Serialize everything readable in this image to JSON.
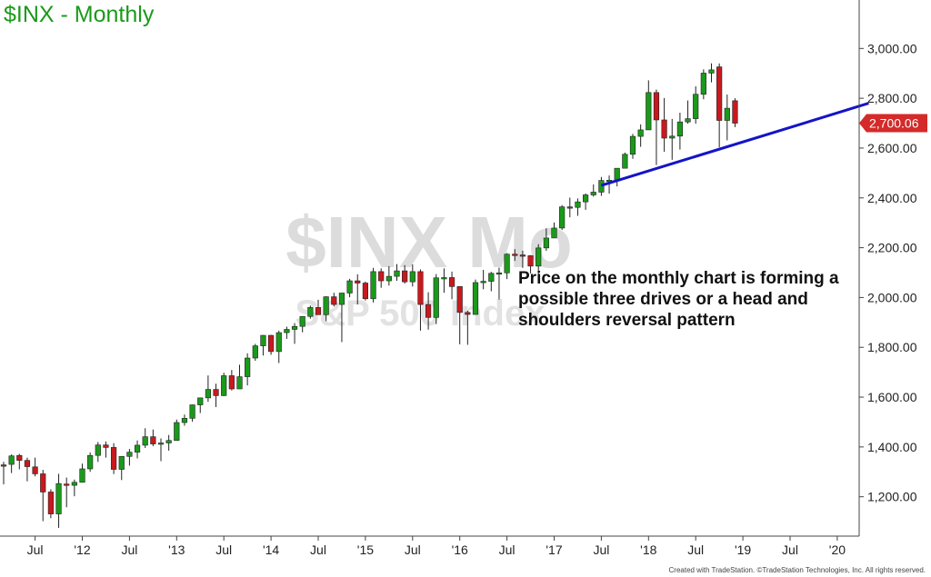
{
  "header": {
    "title": "$INX - Monthly"
  },
  "watermark": {
    "symbol": "$INX Mo",
    "name": "S&P 500 Index"
  },
  "annotation": "Price on the monthly chart is forming a possible three drives or a head and shoulders reversal pattern",
  "last_price_label": "2,700.06",
  "footer": "Created with TradeStation. ©TradeStation Technologies, Inc. All rights reserved.",
  "colors": {
    "up": "#1a9a1a",
    "down": "#c8191e",
    "trendline": "#1414c8",
    "title": "#1a9a1a",
    "price_tag": "#d42a2a"
  },
  "chart_data": {
    "type": "candlestick",
    "title": "$INX - Monthly",
    "ylim": [
      1000,
      3200
    ],
    "xlim": [
      "2011-03",
      "2020-05"
    ],
    "y_ticks": [
      {
        "value": 1200,
        "label": "1,200.00"
      },
      {
        "value": 1400,
        "label": "1,400.00"
      },
      {
        "value": 1600,
        "label": "1,600.00"
      },
      {
        "value": 1800,
        "label": "1,800.00"
      },
      {
        "value": 2000,
        "label": "2,000.00"
      },
      {
        "value": 2200,
        "label": "2,200.00"
      },
      {
        "value": 2400,
        "label": "2,400.00"
      },
      {
        "value": 2600,
        "label": "2,600.00"
      },
      {
        "value": 2800,
        "label": "2,800.00"
      },
      {
        "value": 3000,
        "label": "3,000.00"
      }
    ],
    "x_ticks": [
      {
        "date": "2011-07",
        "label": "Jul"
      },
      {
        "date": "2012-01",
        "label": "'12"
      },
      {
        "date": "2012-07",
        "label": "Jul"
      },
      {
        "date": "2013-01",
        "label": "'13"
      },
      {
        "date": "2013-07",
        "label": "Jul"
      },
      {
        "date": "2014-01",
        "label": "'14"
      },
      {
        "date": "2014-07",
        "label": "Jul"
      },
      {
        "date": "2015-01",
        "label": "'15"
      },
      {
        "date": "2015-07",
        "label": "Jul"
      },
      {
        "date": "2016-01",
        "label": "'16"
      },
      {
        "date": "2016-07",
        "label": "Jul"
      },
      {
        "date": "2017-01",
        "label": "'17"
      },
      {
        "date": "2017-07",
        "label": "Jul"
      },
      {
        "date": "2018-01",
        "label": "'18"
      },
      {
        "date": "2018-07",
        "label": "Jul"
      },
      {
        "date": "2019-01",
        "label": "'19"
      },
      {
        "date": "2019-07",
        "label": "Jul"
      },
      {
        "date": "2020-01",
        "label": "'20"
      }
    ],
    "candles": [
      {
        "date": "2011-03",
        "o": 1328,
        "h": 1340,
        "l": 1250,
        "c": 1325
      },
      {
        "date": "2011-04",
        "o": 1330,
        "h": 1370,
        "l": 1295,
        "c": 1364
      },
      {
        "date": "2011-05",
        "o": 1366,
        "h": 1372,
        "l": 1310,
        "c": 1346
      },
      {
        "date": "2011-06",
        "o": 1346,
        "h": 1357,
        "l": 1262,
        "c": 1321
      },
      {
        "date": "2011-07",
        "o": 1320,
        "h": 1357,
        "l": 1282,
        "c": 1292
      },
      {
        "date": "2011-08",
        "o": 1292,
        "h": 1308,
        "l": 1102,
        "c": 1219
      },
      {
        "date": "2011-09",
        "o": 1219,
        "h": 1230,
        "l": 1114,
        "c": 1131
      },
      {
        "date": "2011-10",
        "o": 1131,
        "h": 1292,
        "l": 1075,
        "c": 1253
      },
      {
        "date": "2011-11",
        "o": 1251,
        "h": 1277,
        "l": 1158,
        "c": 1247
      },
      {
        "date": "2011-12",
        "o": 1246,
        "h": 1269,
        "l": 1202,
        "c": 1258
      },
      {
        "date": "2012-01",
        "o": 1258,
        "h": 1333,
        "l": 1258,
        "c": 1312
      },
      {
        "date": "2012-02",
        "o": 1312,
        "h": 1378,
        "l": 1300,
        "c": 1366
      },
      {
        "date": "2012-03",
        "o": 1366,
        "h": 1420,
        "l": 1340,
        "c": 1408
      },
      {
        "date": "2012-04",
        "o": 1408,
        "h": 1422,
        "l": 1357,
        "c": 1398
      },
      {
        "date": "2012-05",
        "o": 1398,
        "h": 1415,
        "l": 1291,
        "c": 1310
      },
      {
        "date": "2012-06",
        "o": 1310,
        "h": 1363,
        "l": 1267,
        "c": 1362
      },
      {
        "date": "2012-07",
        "o": 1362,
        "h": 1392,
        "l": 1325,
        "c": 1379
      },
      {
        "date": "2012-08",
        "o": 1379,
        "h": 1426,
        "l": 1354,
        "c": 1407
      },
      {
        "date": "2012-09",
        "o": 1407,
        "h": 1475,
        "l": 1396,
        "c": 1441
      },
      {
        "date": "2012-10",
        "o": 1441,
        "h": 1470,
        "l": 1403,
        "c": 1412
      },
      {
        "date": "2012-11",
        "o": 1412,
        "h": 1434,
        "l": 1343,
        "c": 1416
      },
      {
        "date": "2012-12",
        "o": 1416,
        "h": 1448,
        "l": 1385,
        "c": 1426
      },
      {
        "date": "2013-01",
        "o": 1426,
        "h": 1510,
        "l": 1426,
        "c": 1498
      },
      {
        "date": "2013-02",
        "o": 1498,
        "h": 1530,
        "l": 1485,
        "c": 1515
      },
      {
        "date": "2013-03",
        "o": 1515,
        "h": 1570,
        "l": 1501,
        "c": 1569
      },
      {
        "date": "2013-04",
        "o": 1569,
        "h": 1597,
        "l": 1536,
        "c": 1597
      },
      {
        "date": "2013-05",
        "o": 1597,
        "h": 1687,
        "l": 1581,
        "c": 1631
      },
      {
        "date": "2013-06",
        "o": 1631,
        "h": 1654,
        "l": 1560,
        "c": 1606
      },
      {
        "date": "2013-07",
        "o": 1606,
        "h": 1698,
        "l": 1604,
        "c": 1686
      },
      {
        "date": "2013-08",
        "o": 1686,
        "h": 1709,
        "l": 1627,
        "c": 1633
      },
      {
        "date": "2013-09",
        "o": 1633,
        "h": 1730,
        "l": 1633,
        "c": 1682
      },
      {
        "date": "2013-10",
        "o": 1682,
        "h": 1776,
        "l": 1647,
        "c": 1757
      },
      {
        "date": "2013-11",
        "o": 1757,
        "h": 1814,
        "l": 1746,
        "c": 1806
      },
      {
        "date": "2013-12",
        "o": 1806,
        "h": 1849,
        "l": 1767,
        "c": 1848
      },
      {
        "date": "2014-01",
        "o": 1848,
        "h": 1850,
        "l": 1770,
        "c": 1783
      },
      {
        "date": "2014-02",
        "o": 1783,
        "h": 1867,
        "l": 1737,
        "c": 1859
      },
      {
        "date": "2014-03",
        "o": 1859,
        "h": 1883,
        "l": 1834,
        "c": 1872
      },
      {
        "date": "2014-04",
        "o": 1872,
        "h": 1897,
        "l": 1814,
        "c": 1884
      },
      {
        "date": "2014-05",
        "o": 1884,
        "h": 1924,
        "l": 1860,
        "c": 1924
      },
      {
        "date": "2014-06",
        "o": 1924,
        "h": 1968,
        "l": 1915,
        "c": 1960
      },
      {
        "date": "2014-07",
        "o": 1960,
        "h": 1991,
        "l": 1930,
        "c": 1931
      },
      {
        "date": "2014-08",
        "o": 1931,
        "h": 2005,
        "l": 1905,
        "c": 2003
      },
      {
        "date": "2014-09",
        "o": 2003,
        "h": 2019,
        "l": 1964,
        "c": 1972
      },
      {
        "date": "2014-10",
        "o": 1972,
        "h": 2019,
        "l": 1821,
        "c": 2018
      },
      {
        "date": "2014-11",
        "o": 2018,
        "h": 2075,
        "l": 2001,
        "c": 2067
      },
      {
        "date": "2014-12",
        "o": 2067,
        "h": 2093,
        "l": 1972,
        "c": 2058
      },
      {
        "date": "2015-01",
        "o": 2058,
        "h": 2064,
        "l": 1988,
        "c": 1995
      },
      {
        "date": "2015-02",
        "o": 1995,
        "h": 2119,
        "l": 1980,
        "c": 2104
      },
      {
        "date": "2015-03",
        "o": 2104,
        "h": 2117,
        "l": 2039,
        "c": 2067
      },
      {
        "date": "2015-04",
        "o": 2067,
        "h": 2126,
        "l": 2048,
        "c": 2085
      },
      {
        "date": "2015-05",
        "o": 2085,
        "h": 2134,
        "l": 2067,
        "c": 2107
      },
      {
        "date": "2015-06",
        "o": 2107,
        "h": 2130,
        "l": 2056,
        "c": 2063
      },
      {
        "date": "2015-07",
        "o": 2063,
        "h": 2133,
        "l": 2044,
        "c": 2104
      },
      {
        "date": "2015-08",
        "o": 2104,
        "h": 2113,
        "l": 1867,
        "c": 1972
      },
      {
        "date": "2015-09",
        "o": 1972,
        "h": 2021,
        "l": 1871,
        "c": 1920
      },
      {
        "date": "2015-10",
        "o": 1920,
        "h": 2094,
        "l": 1893,
        "c": 2079
      },
      {
        "date": "2015-11",
        "o": 2079,
        "h": 2117,
        "l": 2019,
        "c": 2080
      },
      {
        "date": "2015-12",
        "o": 2080,
        "h": 2104,
        "l": 1993,
        "c": 2044
      },
      {
        "date": "2016-01",
        "o": 2044,
        "h": 2038,
        "l": 1812,
        "c": 1940
      },
      {
        "date": "2016-02",
        "o": 1940,
        "h": 1947,
        "l": 1810,
        "c": 1932
      },
      {
        "date": "2016-03",
        "o": 1932,
        "h": 2072,
        "l": 1931,
        "c": 2060
      },
      {
        "date": "2016-04",
        "o": 2060,
        "h": 2111,
        "l": 2033,
        "c": 2065
      },
      {
        "date": "2016-05",
        "o": 2065,
        "h": 2103,
        "l": 2025,
        "c": 2097
      },
      {
        "date": "2016-06",
        "o": 2097,
        "h": 2120,
        "l": 1992,
        "c": 2099
      },
      {
        "date": "2016-07",
        "o": 2099,
        "h": 2178,
        "l": 2074,
        "c": 2174
      },
      {
        "date": "2016-08",
        "o": 2174,
        "h": 2194,
        "l": 2147,
        "c": 2171
      },
      {
        "date": "2016-09",
        "o": 2171,
        "h": 2188,
        "l": 2119,
        "c": 2168
      },
      {
        "date": "2016-10",
        "o": 2168,
        "h": 2170,
        "l": 2097,
        "c": 2126
      },
      {
        "date": "2016-11",
        "o": 2126,
        "h": 2214,
        "l": 2084,
        "c": 2199
      },
      {
        "date": "2016-12",
        "o": 2199,
        "h": 2278,
        "l": 2187,
        "c": 2239
      },
      {
        "date": "2017-01",
        "o": 2239,
        "h": 2301,
        "l": 2245,
        "c": 2279
      },
      {
        "date": "2017-02",
        "o": 2279,
        "h": 2371,
        "l": 2271,
        "c": 2364
      },
      {
        "date": "2017-03",
        "o": 2364,
        "h": 2401,
        "l": 2322,
        "c": 2362
      },
      {
        "date": "2017-04",
        "o": 2362,
        "h": 2398,
        "l": 2328,
        "c": 2384
      },
      {
        "date": "2017-05",
        "o": 2384,
        "h": 2418,
        "l": 2352,
        "c": 2412
      },
      {
        "date": "2017-06",
        "o": 2412,
        "h": 2454,
        "l": 2405,
        "c": 2423
      },
      {
        "date": "2017-07",
        "o": 2423,
        "h": 2484,
        "l": 2408,
        "c": 2470
      },
      {
        "date": "2017-08",
        "o": 2470,
        "h": 2490,
        "l": 2417,
        "c": 2471
      },
      {
        "date": "2017-09",
        "o": 2471,
        "h": 2519,
        "l": 2446,
        "c": 2519
      },
      {
        "date": "2017-10",
        "o": 2519,
        "h": 2582,
        "l": 2520,
        "c": 2575
      },
      {
        "date": "2017-11",
        "o": 2575,
        "h": 2657,
        "l": 2557,
        "c": 2647
      },
      {
        "date": "2017-12",
        "o": 2647,
        "h": 2695,
        "l": 2605,
        "c": 2673
      },
      {
        "date": "2018-01",
        "o": 2673,
        "h": 2872,
        "l": 2682,
        "c": 2823
      },
      {
        "date": "2018-02",
        "o": 2823,
        "h": 2835,
        "l": 2532,
        "c": 2713
      },
      {
        "date": "2018-03",
        "o": 2713,
        "h": 2801,
        "l": 2585,
        "c": 2640
      },
      {
        "date": "2018-04",
        "o": 2640,
        "h": 2717,
        "l": 2553,
        "c": 2648
      },
      {
        "date": "2018-05",
        "o": 2648,
        "h": 2742,
        "l": 2594,
        "c": 2705
      },
      {
        "date": "2018-06",
        "o": 2705,
        "h": 2791,
        "l": 2698,
        "c": 2718
      },
      {
        "date": "2018-07",
        "o": 2718,
        "h": 2848,
        "l": 2698,
        "c": 2816
      },
      {
        "date": "2018-08",
        "o": 2816,
        "h": 2916,
        "l": 2796,
        "c": 2901
      },
      {
        "date": "2018-09",
        "o": 2901,
        "h": 2940,
        "l": 2864,
        "c": 2914
      },
      {
        "date": "2018-10",
        "o": 2926,
        "h": 2940,
        "l": 2603,
        "c": 2711
      },
      {
        "date": "2018-11",
        "o": 2711,
        "h": 2815,
        "l": 2631,
        "c": 2760
      },
      {
        "date": "2018-12",
        "o": 2790,
        "h": 2800,
        "l": 2684,
        "c": 2700
      }
    ],
    "trendline": {
      "from": {
        "date": "2017-07",
        "value": 2450
      },
      "to": {
        "date": "2020-05",
        "value": 2780
      }
    },
    "last_price": 2700.06
  }
}
